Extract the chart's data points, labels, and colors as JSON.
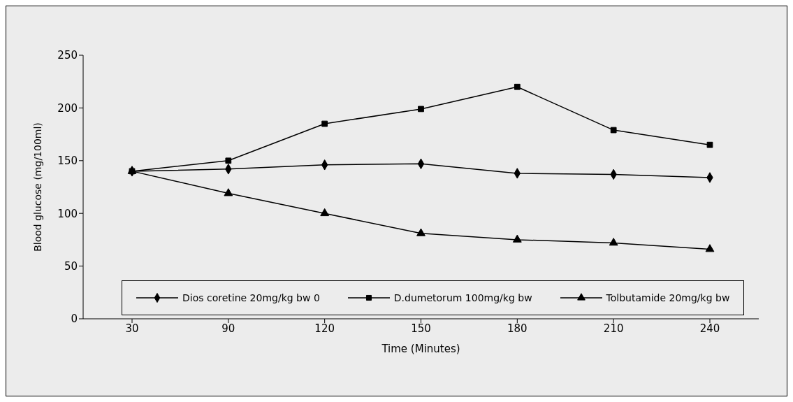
{
  "chart_data": {
    "type": "line",
    "xlabel": "Time (Minutes)",
    "ylabel": "Blood glucose (mg/100ml)",
    "categories": [
      "30",
      "90",
      "120",
      "150",
      "180",
      "210",
      "240"
    ],
    "ylim": [
      0,
      250
    ],
    "yticks": [
      0,
      50,
      100,
      150,
      200,
      250
    ],
    "grid": false,
    "legend": "bottom",
    "line_style": "solid",
    "series": [
      {
        "name": "Dios coretine 20mg/kg bw 0",
        "color": "#000000",
        "marker": "diamond",
        "values": [
          140,
          142,
          146,
          147,
          138,
          137,
          134
        ]
      },
      {
        "name": "D.dumetorum 100mg/kg bw",
        "color": "#000000",
        "marker": "square",
        "values": [
          140,
          150,
          185,
          199,
          220,
          179,
          165
        ]
      },
      {
        "name": "Tolbutamide 20mg/kg bw",
        "color": "#000000",
        "marker": "triangle",
        "values": [
          140,
          119,
          100,
          81,
          75,
          72,
          66
        ]
      }
    ]
  }
}
